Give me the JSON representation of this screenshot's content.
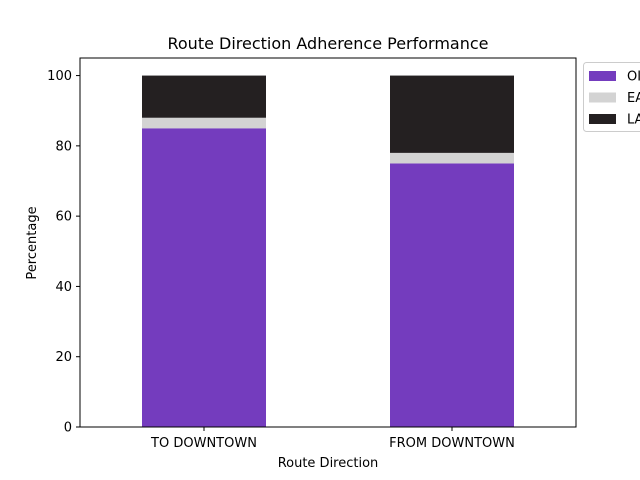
{
  "chart_data": {
    "type": "bar",
    "stacked": true,
    "title": "Route Direction Adherence Performance",
    "xlabel": "Route Direction",
    "ylabel": "Percentage",
    "categories": [
      "TO DOWNTOWN",
      "FROM DOWNTOWN"
    ],
    "ylim": [
      0,
      105
    ],
    "yticks": [
      0,
      20,
      40,
      60,
      80,
      100
    ],
    "grid": false,
    "legend_position": "outside top-right",
    "series": [
      {
        "name": "OI",
        "color": "#743cbe",
        "values": [
          85,
          75
        ]
      },
      {
        "name": "EA",
        "color": "#d3d3d3",
        "values": [
          3,
          3
        ]
      },
      {
        "name": "LA",
        "color": "#242021",
        "values": [
          12,
          22
        ]
      }
    ]
  }
}
